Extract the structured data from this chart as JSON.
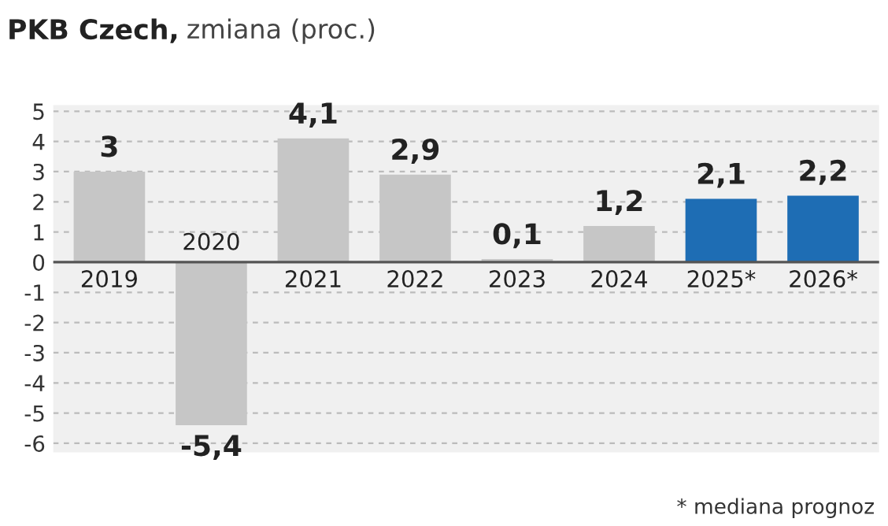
{
  "chart_data": {
    "type": "bar",
    "title": "PKB Czech,",
    "subtitle": "zmiana (proc.)",
    "categories": [
      "2019",
      "2020",
      "2021",
      "2022",
      "2023",
      "2024",
      "2025*",
      "2026*"
    ],
    "values": [
      3,
      -5.4,
      4.1,
      2.9,
      0.1,
      1.2,
      2.1,
      2.2
    ],
    "colors": [
      "#c6c6c6",
      "#c6c6c6",
      "#c6c6c6",
      "#c6c6c6",
      "#c6c6c6",
      "#c6c6c6",
      "#1e6db4",
      "#1e6db4"
    ],
    "value_labels": [
      "3",
      "-5,4",
      "4,1",
      "2,9",
      "0,1",
      "1,2",
      "2,1",
      "2,2"
    ],
    "ylim": [
      -6.3,
      5.2
    ],
    "yticks": [
      5,
      4,
      3,
      2,
      1,
      0,
      -1,
      -2,
      -3,
      -4,
      -5,
      -6
    ],
    "grid": "y",
    "annotations": [
      "* mediana prognoz"
    ]
  }
}
